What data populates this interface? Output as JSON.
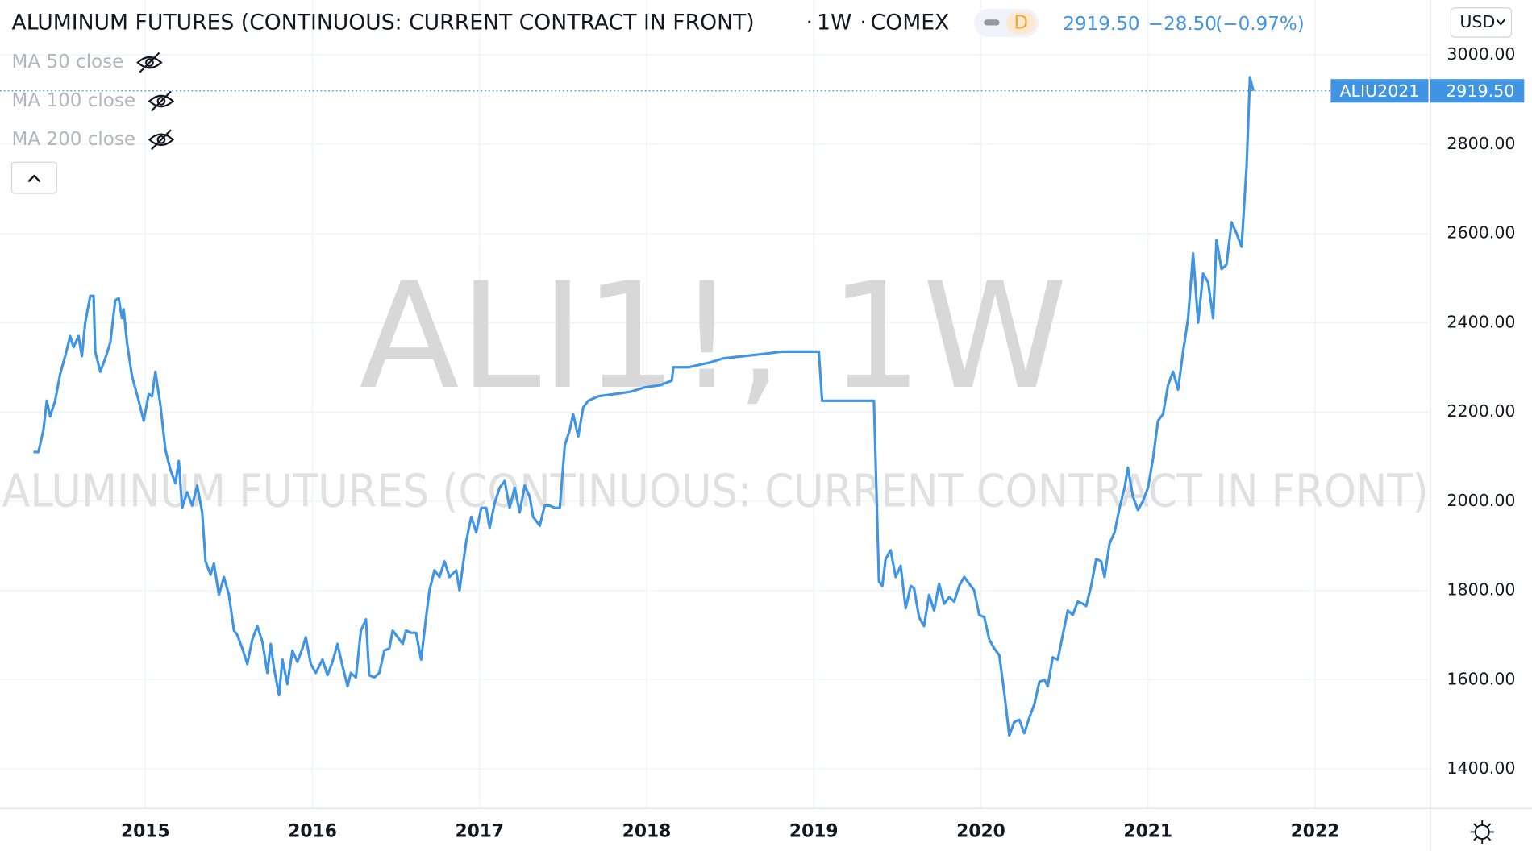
{
  "chart_data": {
    "type": "line",
    "title": "ALUMINUM FUTURES (CONTINUOUS: CURRENT CONTRACT IN FRONT)",
    "interval": "1W",
    "exchange": "COMEX",
    "badge": "D",
    "last_price": "2919.50",
    "change": "−28.50",
    "change_percent": "(−0.97%)",
    "watermark": "ALI1!, 1W",
    "indicators": [
      "MA 50 close",
      "MA 100 close",
      "MA 200 close"
    ],
    "currency": "USD",
    "color": "#4094e4",
    "grid": true,
    "price_tag": {
      "symbol": "ALIU2021",
      "value": 2919.5,
      "label": "2919.50"
    },
    "xlim": [
      2014.13,
      2022.69
    ],
    "ylim": [
      1311,
      3123
    ],
    "xticks": [
      2015,
      2016,
      2017,
      2018,
      2019,
      2020,
      2021,
      2022
    ],
    "yticks": [
      {
        "value": 1400,
        "label": "1400.00"
      },
      {
        "value": 1600,
        "label": "1600.00"
      },
      {
        "value": 1800,
        "label": "1800.00"
      },
      {
        "value": 2000,
        "label": "2000.00"
      },
      {
        "value": 2200,
        "label": "2200.00"
      },
      {
        "value": 2400,
        "label": "2400.00"
      },
      {
        "value": 2600,
        "label": "2600.00"
      },
      {
        "value": 2800,
        "label": "2800.00"
      },
      {
        "value": 3000,
        "label": "3000.00"
      }
    ],
    "x": [
      2014.33,
      2014.36,
      2014.39,
      2014.41,
      2014.43,
      2014.46,
      2014.49,
      2014.52,
      2014.55,
      2014.57,
      2014.6,
      2014.62,
      2014.64,
      2014.67,
      2014.69,
      2014.7,
      2014.73,
      2014.76,
      2014.79,
      2014.82,
      2014.84,
      2014.86,
      2014.87,
      2014.89,
      2014.92,
      2014.96,
      2014.99,
      2015.02,
      2015.04,
      2015.06,
      2015.09,
      2015.12,
      2015.15,
      2015.18,
      2015.2,
      2015.22,
      2015.25,
      2015.28,
      2015.31,
      2015.34,
      2015.36,
      2015.39,
      2015.41,
      2015.44,
      2015.47,
      2015.5,
      2015.53,
      2015.55,
      2015.58,
      2015.61,
      2015.64,
      2015.67,
      2015.7,
      2015.73,
      2015.75,
      2015.77,
      2015.8,
      2015.82,
      2015.85,
      2015.88,
      2015.91,
      2015.94,
      2015.96,
      2015.99,
      2016.02,
      2016.06,
      2016.09,
      2016.12,
      2016.15,
      2016.18,
      2016.21,
      2016.23,
      2016.26,
      2016.29,
      2016.32,
      2016.34,
      2016.37,
      2016.4,
      2016.43,
      2016.46,
      2016.48,
      2016.51,
      2016.54,
      2016.56,
      2016.59,
      2016.62,
      2016.65,
      2016.68,
      2016.7,
      2016.73,
      2016.76,
      2016.79,
      2016.82,
      2016.86,
      2016.88,
      2016.92,
      2016.95,
      2016.98,
      2017.01,
      2017.04,
      2017.06,
      2017.09,
      2017.12,
      2017.15,
      2017.18,
      2017.21,
      2017.24,
      2017.27,
      2017.3,
      2017.32,
      2017.36,
      2017.39,
      2017.42,
      2017.45,
      2017.48,
      2017.51,
      2017.54,
      2017.56,
      2017.59,
      2017.62,
      2017.65,
      2017.68,
      2017.71,
      2017.81,
      2017.9,
      2017.99,
      2018.08,
      2018.15,
      2018.16,
      2018.25,
      2018.37,
      2018.46,
      2018.58,
      2018.7,
      2018.81,
      2019.03,
      2019.05,
      2019.36,
      2019.39,
      2019.41,
      2019.43,
      2019.46,
      2019.49,
      2019.52,
      2019.55,
      2019.58,
      2019.6,
      2019.63,
      2019.66,
      2019.69,
      2019.72,
      2019.75,
      2019.78,
      2019.81,
      2019.84,
      2019.87,
      2019.9,
      2019.93,
      2019.96,
      2019.99,
      2020.02,
      2020.05,
      2020.08,
      2020.11,
      2020.14,
      2020.17,
      2020.2,
      2020.23,
      2020.26,
      2020.29,
      2020.32,
      2020.35,
      2020.38,
      2020.4,
      2020.43,
      2020.46,
      2020.49,
      2020.52,
      2020.55,
      2020.58,
      2020.61,
      2020.63,
      2020.66,
      2020.69,
      2020.72,
      2020.74,
      2020.77,
      2020.8,
      2020.83,
      2020.86,
      2020.88,
      2020.91,
      2020.94,
      2020.97,
      2021.0,
      2021.03,
      2021.06,
      2021.09,
      2021.12,
      2021.15,
      2021.18,
      2021.21,
      2021.24,
      2021.27,
      2021.3,
      2021.33,
      2021.36,
      2021.39,
      2021.41,
      2021.44,
      2021.47,
      2021.5,
      2021.53,
      2021.56,
      2021.59,
      2021.61,
      2021.63
    ],
    "values": [
      2110,
      2110,
      2160,
      2225,
      2190,
      2225,
      2285,
      2325,
      2370,
      2345,
      2370,
      2325,
      2400,
      2460,
      2460,
      2335,
      2290,
      2320,
      2355,
      2450,
      2455,
      2410,
      2430,
      2355,
      2280,
      2225,
      2180,
      2240,
      2235,
      2290,
      2215,
      2115,
      2070,
      2040,
      2090,
      1985,
      2020,
      1990,
      2035,
      1975,
      1865,
      1835,
      1860,
      1790,
      1830,
      1790,
      1710,
      1700,
      1670,
      1635,
      1690,
      1720,
      1685,
      1615,
      1680,
      1625,
      1565,
      1645,
      1590,
      1665,
      1640,
      1670,
      1695,
      1635,
      1615,
      1645,
      1610,
      1640,
      1680,
      1630,
      1585,
      1615,
      1605,
      1710,
      1735,
      1610,
      1605,
      1615,
      1665,
      1670,
      1710,
      1695,
      1680,
      1710,
      1705,
      1705,
      1645,
      1740,
      1800,
      1845,
      1830,
      1865,
      1830,
      1845,
      1800,
      1910,
      1965,
      1930,
      1985,
      1985,
      1940,
      1995,
      2030,
      2045,
      1985,
      2030,
      1975,
      2035,
      2010,
      1965,
      1945,
      1990,
      1990,
      1985,
      1985,
      2125,
      2160,
      2195,
      2145,
      2210,
      2225,
      2230,
      2235,
      2240,
      2245,
      2255,
      2260,
      2270,
      2300,
      2300,
      2310,
      2320,
      2325,
      2330,
      2335,
      2335,
      2225,
      2225,
      1820,
      1810,
      1870,
      1890,
      1830,
      1855,
      1760,
      1810,
      1805,
      1740,
      1720,
      1790,
      1755,
      1815,
      1770,
      1785,
      1775,
      1810,
      1830,
      1815,
      1800,
      1745,
      1740,
      1690,
      1670,
      1655,
      1570,
      1475,
      1505,
      1510,
      1480,
      1515,
      1545,
      1595,
      1600,
      1585,
      1650,
      1645,
      1700,
      1755,
      1745,
      1775,
      1770,
      1765,
      1810,
      1870,
      1865,
      1830,
      1905,
      1930,
      1985,
      2030,
      2075,
      2010,
      1980,
      2000,
      2030,
      2095,
      2180,
      2195,
      2260,
      2290,
      2250,
      2335,
      2410,
      2555,
      2400,
      2510,
      2490,
      2410,
      2585,
      2520,
      2530,
      2625,
      2600,
      2570,
      2750,
      2950,
      2919.5
    ]
  }
}
